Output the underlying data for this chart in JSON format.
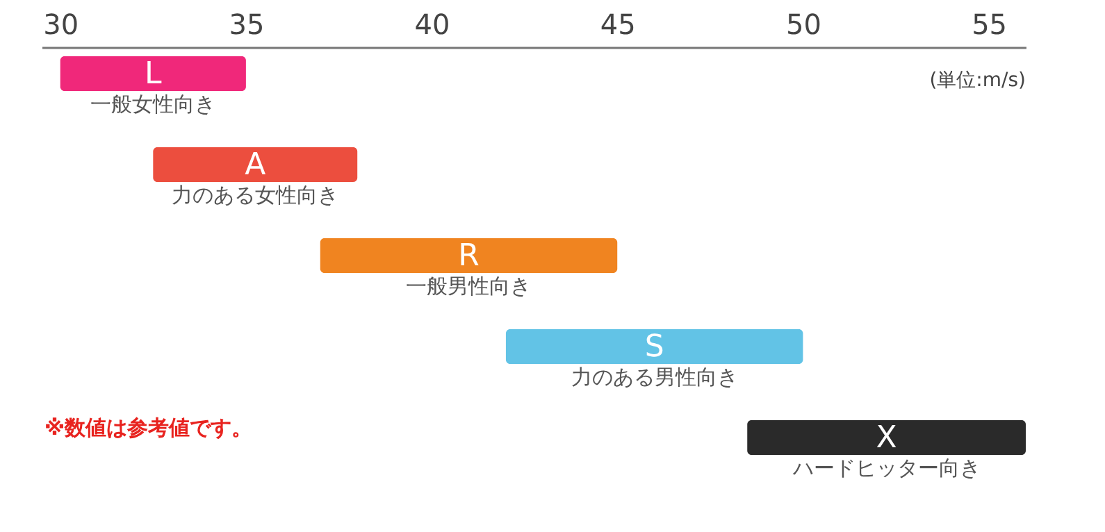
{
  "chart_data": {
    "type": "bar",
    "orientation": "horizontal",
    "xlabel": "(単位:m/s)",
    "categories": [
      "L",
      "A",
      "R",
      "S",
      "X"
    ],
    "base": [
      30,
      32.5,
      37,
      42,
      48.5
    ],
    "values": [
      5,
      5.5,
      8,
      8,
      7.5
    ],
    "colors": [
      "#f0287a",
      "#ec4e3e",
      "#f08420",
      "#62c3e6",
      "#2a2a2a"
    ],
    "xlim": [
      29.5,
      56
    ],
    "xticks": [
      30,
      35,
      40,
      45,
      50,
      55
    ],
    "grid": false,
    "tick_labels": "x",
    "annotations": [
      "一般女性向き",
      "力のある女性向き",
      "一般男性向き",
      "力のある男性向き",
      "ハードヒッター向き",
      "※数値は参考値です。"
    ]
  }
}
